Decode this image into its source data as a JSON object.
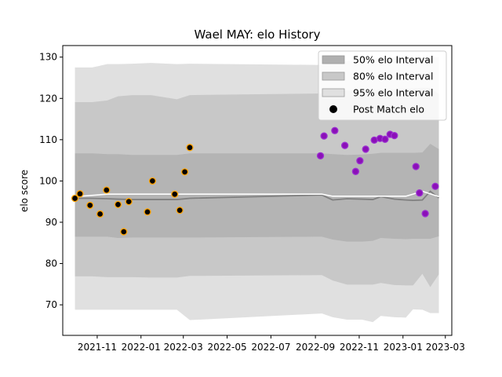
{
  "chart_data": {
    "type": "line",
    "title": "Wael MAY: elo History",
    "xlabel": "",
    "ylabel": "elo score",
    "xlim": [
      "2021-09-14",
      "2023-03-10"
    ],
    "ylim": [
      62.6,
      132.8
    ],
    "x_ticks": [
      "2021-11",
      "2022-01",
      "2022-03",
      "2022-05",
      "2022-07",
      "2022-09",
      "2022-11",
      "2023-01",
      "2023-03"
    ],
    "y_ticks": [
      70,
      80,
      90,
      100,
      110,
      120,
      130
    ],
    "legend_position": "top-right",
    "legend": [
      {
        "label": "50% elo Interval",
        "kind": "patch",
        "color": "#b0b0b0"
      },
      {
        "label": "80% elo Interval",
        "kind": "patch",
        "color": "#c8c8c8"
      },
      {
        "label": "95% elo Interval",
        "kind": "patch",
        "color": "#e0e0e0"
      },
      {
        "label": "Post Match elo",
        "kind": "marker",
        "color": "#000000"
      }
    ],
    "intervals": {
      "x": [
        "2021-10-01",
        "2021-10-25",
        "2021-11-15",
        "2021-11-30",
        "2021-12-20",
        "2022-01-15",
        "2022-02-20",
        "2022-03-10",
        "2022-09-10",
        "2022-09-25",
        "2022-10-15",
        "2022-11-05",
        "2022-11-20",
        "2022-12-01",
        "2022-12-20",
        "2023-01-05",
        "2023-01-15",
        "2023-01-28",
        "2023-02-08",
        "2023-02-20"
      ],
      "mean": [
        95.8,
        95.8,
        95.7,
        95.6,
        95.5,
        95.5,
        95.5,
        95.8,
        96.6,
        95.4,
        95.7,
        95.6,
        95.5,
        96.2,
        95.6,
        95.4,
        95.3,
        95.4,
        97.5,
        95.9
      ],
      "p50_low": [
        86.5,
        86.5,
        86.5,
        86.2,
        86.3,
        86.3,
        86.3,
        86.3,
        86.5,
        85.8,
        85.3,
        85.3,
        85.5,
        86.2,
        86.0,
        85.9,
        86.0,
        86.0,
        86.0,
        86.6
      ],
      "p50_high": [
        106.7,
        106.7,
        106.5,
        106.5,
        106.3,
        106.3,
        106.3,
        106.7,
        106.7,
        106.5,
        106.3,
        106.4,
        106.6,
        106.8,
        106.8,
        106.8,
        106.8,
        106.9,
        109.0,
        107.7
      ],
      "p80_low": [
        76.9,
        76.9,
        76.7,
        76.7,
        76.7,
        76.6,
        76.6,
        77.0,
        77.2,
        75.9,
        74.9,
        74.9,
        74.9,
        75.3,
        74.8,
        74.7,
        74.7,
        77.5,
        74.3,
        77.4
      ],
      "p80_high": [
        119.1,
        119.1,
        119.5,
        120.5,
        120.8,
        120.8,
        119.8,
        120.8,
        121.2,
        121.4,
        121.9,
        121.9,
        121.9,
        122.2,
        122.2,
        122.3,
        122.4,
        122.6,
        122.6,
        121.0
      ],
      "p95_low": [
        68.8,
        68.8,
        68.8,
        68.8,
        68.8,
        68.8,
        68.8,
        66.3,
        67.9,
        67.0,
        66.4,
        66.4,
        65.8,
        67.3,
        67.0,
        66.9,
        68.9,
        68.8,
        68.0,
        68.0
      ],
      "p95_high": [
        127.5,
        127.5,
        128.3,
        128.3,
        128.4,
        128.6,
        128.3,
        128.4,
        128.1,
        129.0,
        129.0,
        129.8,
        129.8,
        130.0,
        130.0,
        130.0,
        130.0,
        130.0,
        130.0,
        130.0
      ]
    },
    "white_line": [
      {
        "x": "2021-10-01",
        "y": 96.2
      },
      {
        "x": "2021-11-15",
        "y": 96.8
      },
      {
        "x": "2022-03-10",
        "y": 96.8
      },
      {
        "x": "2022-09-10",
        "y": 96.8
      },
      {
        "x": "2022-09-25",
        "y": 96.3
      },
      {
        "x": "2023-01-05",
        "y": 96.3
      },
      {
        "x": "2023-01-28",
        "y": 97.5
      },
      {
        "x": "2023-02-20",
        "y": 96.2
      }
    ],
    "series": [
      {
        "label_text": "",
        "marker_fill": "#000000",
        "marker_edge": "#ffa500",
        "points": [
          {
            "x": "2021-10-01",
            "y": 95.8
          },
          {
            "x": "2021-10-08",
            "y": 96.9
          },
          {
            "x": "2021-10-22",
            "y": 94.1
          },
          {
            "x": "2021-11-05",
            "y": 92.0
          },
          {
            "x": "2021-11-14",
            "y": 97.8
          },
          {
            "x": "2021-11-30",
            "y": 94.3
          },
          {
            "x": "2021-12-08",
            "y": 87.7
          },
          {
            "x": "2021-12-15",
            "y": 95.0
          },
          {
            "x": "2022-01-10",
            "y": 92.5
          },
          {
            "x": "2022-01-17",
            "y": 100.0
          },
          {
            "x": "2022-02-17",
            "y": 96.8
          },
          {
            "x": "2022-02-24",
            "y": 92.9
          },
          {
            "x": "2022-03-03",
            "y": 102.2
          },
          {
            "x": "2022-03-10",
            "y": 108.1
          }
        ]
      },
      {
        "label_text": "",
        "marker_fill": "#8b10b8",
        "marker_edge": "#9b30d0",
        "points": [
          {
            "x": "2022-09-08",
            "y": 106.1
          },
          {
            "x": "2022-09-13",
            "y": 110.9
          },
          {
            "x": "2022-09-28",
            "y": 112.2
          },
          {
            "x": "2022-10-12",
            "y": 108.6
          },
          {
            "x": "2022-10-27",
            "y": 102.3
          },
          {
            "x": "2022-11-02",
            "y": 104.9
          },
          {
            "x": "2022-11-10",
            "y": 107.7
          },
          {
            "x": "2022-11-22",
            "y": 109.9
          },
          {
            "x": "2022-11-30",
            "y": 110.3
          },
          {
            "x": "2022-12-07",
            "y": 110.1
          },
          {
            "x": "2022-12-14",
            "y": 111.3
          },
          {
            "x": "2022-12-20",
            "y": 111.0
          },
          {
            "x": "2023-01-19",
            "y": 103.5
          },
          {
            "x": "2023-01-24",
            "y": 97.1
          },
          {
            "x": "2023-02-01",
            "y": 92.1
          },
          {
            "x": "2023-02-15",
            "y": 98.7
          }
        ]
      }
    ]
  }
}
